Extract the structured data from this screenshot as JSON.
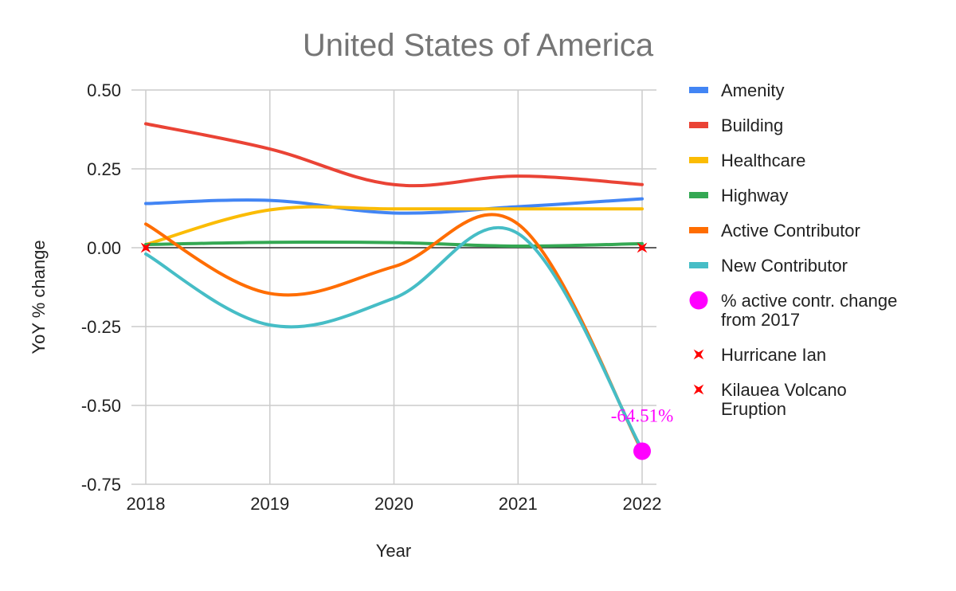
{
  "chart_data": {
    "type": "line",
    "title": "United States of America",
    "xlabel": "Year",
    "ylabel": "YoY % change",
    "categories": [
      "2018",
      "2019",
      "2020",
      "2021",
      "2022"
    ],
    "ylim": [
      -0.75,
      0.5
    ],
    "yticks": [
      "0.50",
      "0.25",
      "0.00",
      "-0.25",
      "-0.50",
      "-0.75"
    ],
    "ytick_values": [
      0.5,
      0.25,
      0,
      -0.25,
      -0.5,
      -0.75
    ],
    "grid": true,
    "legend_position": "right",
    "series": [
      {
        "name": "Amenity",
        "color": "#4285F4",
        "values": [
          0.14,
          0.15,
          0.11,
          0.13,
          0.155
        ]
      },
      {
        "name": "Building",
        "color": "#EA4335",
        "values": [
          0.393,
          0.313,
          0.2,
          0.227,
          0.2
        ]
      },
      {
        "name": "Healthcare",
        "color": "#FBBC04",
        "values": [
          0.01,
          0.12,
          0.123,
          0.123,
          0.123
        ]
      },
      {
        "name": "Highway",
        "color": "#34A853",
        "values": [
          0.01,
          0.017,
          0.016,
          0.005,
          0.013
        ]
      },
      {
        "name": "Active Contributor",
        "color": "#FF6D01",
        "values": [
          0.075,
          -0.145,
          -0.06,
          0.075,
          -0.645
        ]
      },
      {
        "name": "New Contributor",
        "color": "#46BDC6",
        "values": [
          -0.02,
          -0.245,
          -0.16,
          0.045,
          -0.64
        ]
      }
    ],
    "marker_series": [
      {
        "name": "% active contr. change from 2017",
        "color": "#FF00FF",
        "shape": "circle",
        "x": "2022",
        "y": -0.6451,
        "label": "-64.51%"
      },
      {
        "name": "Hurricane Ian",
        "color": "#FF0000",
        "shape": "star",
        "x": "2022",
        "y": 0
      },
      {
        "name": "Kilauea Volcano Eruption",
        "color": "#FF0000",
        "shape": "star",
        "x": "2018",
        "y": 0
      }
    ],
    "legend_entries": [
      {
        "lines": [
          "Amenity"
        ],
        "color": "#4285F4",
        "shape": "line"
      },
      {
        "lines": [
          "Building"
        ],
        "color": "#EA4335",
        "shape": "line"
      },
      {
        "lines": [
          "Healthcare"
        ],
        "color": "#FBBC04",
        "shape": "line"
      },
      {
        "lines": [
          "Highway"
        ],
        "color": "#34A853",
        "shape": "line"
      },
      {
        "lines": [
          "Active Contributor"
        ],
        "color": "#FF6D01",
        "shape": "line"
      },
      {
        "lines": [
          "New Contributor"
        ],
        "color": "#46BDC6",
        "shape": "line"
      },
      {
        "lines": [
          "% active contr. change",
          "from 2017"
        ],
        "color": "#FF00FF",
        "shape": "circle"
      },
      {
        "lines": [
          "Hurricane Ian"
        ],
        "color": "#FF0000",
        "shape": "star"
      },
      {
        "lines": [
          "Kilauea Volcano",
          "Eruption"
        ],
        "color": "#FF0000",
        "shape": "star"
      }
    ],
    "colors": {
      "grid": "#cccccc",
      "zero_line": "#333333",
      "title": "#757575",
      "text": "#222222"
    }
  }
}
